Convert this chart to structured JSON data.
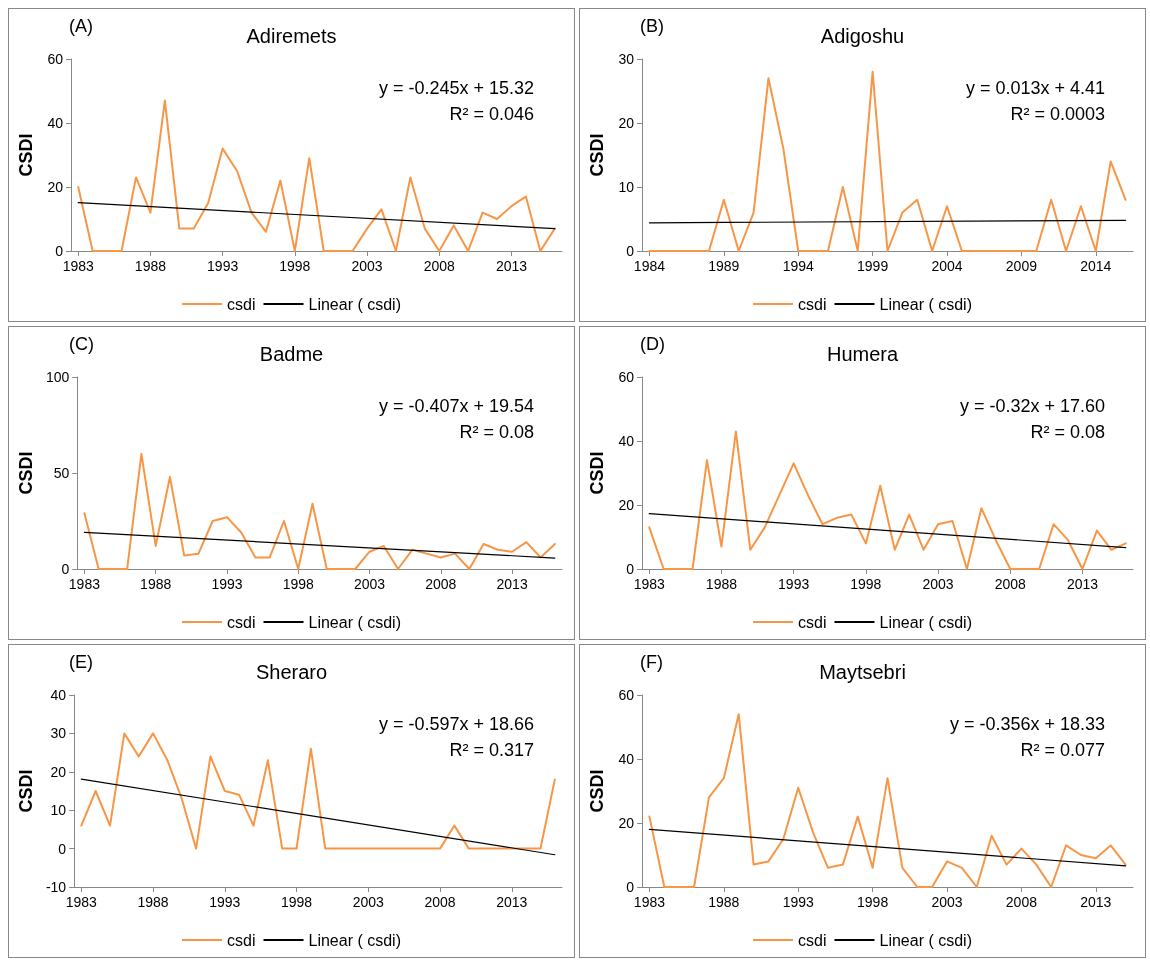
{
  "chart_data": [
    {
      "type": "line",
      "title": "Adiremets",
      "ylabel": "CSDI",
      "annotations": [
        "(A)",
        "y = -0.245x + 15.32",
        "R² = 0.046"
      ],
      "x": [
        1983,
        1984,
        1985,
        1986,
        1987,
        1988,
        1989,
        1990,
        1991,
        1992,
        1993,
        1994,
        1995,
        1996,
        1997,
        1998,
        1999,
        2000,
        2001,
        2002,
        2003,
        2004,
        2005,
        2006,
        2007,
        2008,
        2009,
        2010,
        2011,
        2012,
        2013,
        2014,
        2015,
        2016
      ],
      "xlim": [
        1982.5,
        2016.5
      ],
      "xticks": [
        1983,
        1988,
        1993,
        1998,
        2003,
        2008,
        2013
      ],
      "ylim": [
        0,
        60
      ],
      "yticks": [
        0,
        20,
        40,
        60
      ],
      "grid": false,
      "legend": "bottom",
      "marker": "none",
      "line_style": "solid",
      "series": [
        {
          "name": "csdi",
          "color": "#f79646",
          "values": [
            20,
            0,
            0,
            0,
            23,
            12,
            47,
            7,
            7,
            15,
            32,
            25,
            12,
            6,
            22,
            0,
            29,
            0,
            0,
            0,
            7,
            13,
            0,
            23,
            7,
            0,
            8,
            0,
            12,
            10,
            14,
            17,
            0,
            7
          ]
        },
        {
          "name": "Linear ( csdi)",
          "type": "line",
          "color": "#000000",
          "x": [
            1983,
            2016
          ],
          "values": [
            15.1,
            7.0
          ]
        }
      ]
    },
    {
      "type": "line",
      "title": "Adigoshu",
      "ylabel": "CSDI",
      "annotations": [
        "(B)",
        "y = 0.013x + 4.41",
        "R² = 0.0003"
      ],
      "x": [
        1984,
        1985,
        1986,
        1987,
        1988,
        1989,
        1990,
        1991,
        1992,
        1993,
        1994,
        1995,
        1996,
        1997,
        1998,
        1999,
        2000,
        2001,
        2002,
        2003,
        2004,
        2005,
        2006,
        2007,
        2008,
        2009,
        2010,
        2011,
        2012,
        2013,
        2014,
        2015,
        2016
      ],
      "xlim": [
        1983.5,
        2016.5
      ],
      "xticks": [
        1984,
        1989,
        1994,
        1999,
        2004,
        2009,
        2014
      ],
      "ylim": [
        0,
        30
      ],
      "yticks": [
        0,
        10,
        20,
        30
      ],
      "grid": false,
      "legend": "bottom",
      "marker": "none",
      "line_style": "solid",
      "series": [
        {
          "name": "csdi",
          "color": "#f79646",
          "values": [
            0,
            0,
            0,
            0,
            0,
            8,
            0,
            6,
            27,
            16,
            0,
            0,
            0,
            10,
            0,
            28,
            0,
            6,
            8,
            0,
            7,
            0,
            0,
            0,
            0,
            0,
            0,
            8,
            0,
            7,
            0,
            14,
            8
          ]
        },
        {
          "name": "Linear ( csdi)",
          "type": "line",
          "color": "#000000",
          "x": [
            1984,
            2016
          ],
          "values": [
            4.4,
            4.8
          ]
        }
      ]
    },
    {
      "type": "line",
      "title": "Badme",
      "ylabel": "CSDI",
      "annotations": [
        "(C)",
        "y = -0.407x + 19.54",
        "R² = 0.08"
      ],
      "x": [
        1983,
        1984,
        1985,
        1986,
        1987,
        1988,
        1989,
        1990,
        1991,
        1992,
        1993,
        1994,
        1995,
        1996,
        1997,
        1998,
        1999,
        2000,
        2001,
        2002,
        2003,
        2004,
        2005,
        2006,
        2007,
        2008,
        2009,
        2010,
        2011,
        2012,
        2013,
        2014,
        2015,
        2016
      ],
      "xlim": [
        1982.5,
        2016.5
      ],
      "xticks": [
        1983,
        1988,
        1993,
        1998,
        2003,
        2008,
        2013
      ],
      "ylim": [
        0,
        100
      ],
      "yticks": [
        0,
        50,
        100
      ],
      "grid": false,
      "legend": "bottom",
      "marker": "none",
      "line_style": "solid",
      "series": [
        {
          "name": "csdi",
          "color": "#f79646",
          "values": [
            29,
            0,
            0,
            0,
            60,
            12,
            48,
            7,
            8,
            25,
            27,
            19,
            6,
            6,
            25,
            0,
            34,
            0,
            0,
            0,
            9,
            12,
            0,
            10,
            8,
            6,
            8,
            0,
            13,
            10,
            9,
            14,
            6,
            13
          ]
        },
        {
          "name": "Linear ( csdi)",
          "type": "line",
          "color": "#000000",
          "x": [
            1983,
            2016
          ],
          "values": [
            19.1,
            5.7
          ]
        }
      ]
    },
    {
      "type": "line",
      "title": "Humera",
      "ylabel": "CSDI",
      "annotations": [
        "(D)",
        "y = -0.32x + 17.60",
        "R² = 0.08"
      ],
      "x": [
        1983,
        1984,
        1985,
        1986,
        1987,
        1988,
        1989,
        1990,
        1991,
        1992,
        1993,
        1994,
        1995,
        1996,
        1997,
        1998,
        1999,
        2000,
        2001,
        2002,
        2003,
        2004,
        2005,
        2006,
        2007,
        2008,
        2009,
        2010,
        2011,
        2012,
        2013,
        2014,
        2015,
        2016
      ],
      "xlim": [
        1982.5,
        2016.5
      ],
      "xticks": [
        1983,
        1988,
        1993,
        1998,
        2003,
        2008,
        2013
      ],
      "ylim": [
        0,
        60
      ],
      "yticks": [
        0,
        20,
        40,
        60
      ],
      "grid": false,
      "legend": "bottom",
      "marker": "none",
      "line_style": "solid",
      "series": [
        {
          "name": "csdi",
          "color": "#f79646",
          "values": [
            13,
            0,
            0,
            0,
            34,
            7,
            43,
            6,
            13,
            23,
            33,
            23,
            14,
            16,
            17,
            8,
            26,
            6,
            17,
            6,
            14,
            15,
            0,
            19,
            9,
            0,
            0,
            0,
            14,
            9,
            0,
            12,
            6,
            8
          ]
        },
        {
          "name": "Linear ( csdi)",
          "type": "line",
          "color": "#000000",
          "x": [
            1983,
            2016
          ],
          "values": [
            17.3,
            6.7
          ]
        }
      ]
    },
    {
      "type": "line",
      "title": "Sheraro",
      "ylabel": "CSDI",
      "annotations": [
        "(E)",
        "y = -0.597x + 18.66",
        "R² = 0.317"
      ],
      "x": [
        1983,
        1984,
        1985,
        1986,
        1987,
        1988,
        1989,
        1990,
        1991,
        1992,
        1993,
        1994,
        1995,
        1996,
        1997,
        1998,
        1999,
        2000,
        2001,
        2002,
        2003,
        2004,
        2005,
        2006,
        2007,
        2008,
        2009,
        2010,
        2011,
        2012,
        2013,
        2014,
        2015,
        2016
      ],
      "xlim": [
        1982.5,
        2016.5
      ],
      "xticks": [
        1983,
        1988,
        1993,
        1998,
        2003,
        2008,
        2013
      ],
      "ylim": [
        -10,
        40
      ],
      "yticks": [
        -10,
        0,
        10,
        20,
        30,
        40
      ],
      "grid": false,
      "legend": "bottom",
      "marker": "none",
      "line_style": "solid",
      "series": [
        {
          "name": "csdi",
          "color": "#f79646",
          "values": [
            6,
            15,
            6,
            30,
            24,
            30,
            23,
            13,
            0,
            24,
            15,
            14,
            6,
            23,
            0,
            0,
            26,
            0,
            0,
            0,
            0,
            0,
            0,
            0,
            0,
            0,
            6,
            0,
            0,
            0,
            0,
            0,
            0,
            18
          ]
        },
        {
          "name": "Linear ( csdi)",
          "type": "line",
          "color": "#000000",
          "x": [
            1983,
            2016
          ],
          "values": [
            18.1,
            -1.6
          ]
        }
      ]
    },
    {
      "type": "line",
      "title": "Maytsebri",
      "ylabel": "CSDI",
      "annotations": [
        "(F)",
        "y = -0.356x + 18.33",
        "R² = 0.077"
      ],
      "x": [
        1983,
        1984,
        1985,
        1986,
        1987,
        1988,
        1989,
        1990,
        1991,
        1992,
        1993,
        1994,
        1995,
        1996,
        1997,
        1998,
        1999,
        2000,
        2001,
        2002,
        2003,
        2004,
        2005,
        2006,
        2007,
        2008,
        2009,
        2010,
        2011,
        2012,
        2013,
        2014,
        2015
      ],
      "xlim": [
        1982.5,
        2015.5
      ],
      "xticks": [
        1983,
        1988,
        1993,
        1998,
        2003,
        2008,
        2013
      ],
      "ylim": [
        0,
        60
      ],
      "yticks": [
        0,
        20,
        40,
        60
      ],
      "grid": false,
      "legend": "bottom",
      "marker": "none",
      "line_style": "solid",
      "series": [
        {
          "name": "csdi",
          "color": "#f79646",
          "values": [
            22,
            0,
            0,
            0,
            28,
            34,
            54,
            7,
            8,
            15,
            31,
            17,
            6,
            7,
            22,
            6,
            34,
            6,
            0,
            0,
            8,
            6,
            0,
            16,
            7,
            12,
            7,
            0,
            13,
            10,
            9,
            13,
            7
          ]
        },
        {
          "name": "Linear ( csdi)",
          "type": "line",
          "color": "#000000",
          "x": [
            1983,
            2015
          ],
          "values": [
            18.0,
            6.6
          ]
        }
      ]
    }
  ]
}
